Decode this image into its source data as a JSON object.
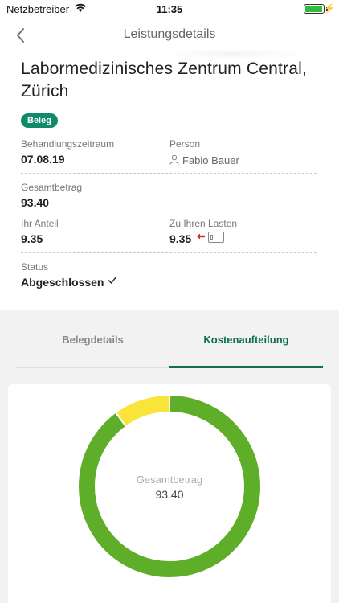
{
  "status_bar": {
    "carrier": "Netzbetreiber",
    "time": "11:35",
    "battery_level": 0.95
  },
  "nav": {
    "title": "Leistungsdetails"
  },
  "header": {
    "provider": "Labormedizinisches Zentrum Central, Zürich",
    "badge": "Beleg"
  },
  "details": {
    "period_label": "Behandlungszeitraum",
    "period_value": "07.08.19",
    "person_label": "Person",
    "person_value": "Fabio Bauer",
    "total_label": "Gesamtbetrag",
    "total_value": "93.40",
    "share_label": "Ihr Anteil",
    "share_value": "9.35",
    "charge_label": "Zu Ihren Lasten",
    "charge_value": "9.35",
    "status_label": "Status",
    "status_value": "Abgeschlossen"
  },
  "tabs": [
    {
      "label": "Belegdetails",
      "active": false
    },
    {
      "label": "Kostenaufteilung",
      "active": true
    }
  ],
  "donut": {
    "center_label": "Gesamtbetrag",
    "center_value": "93.40",
    "segments": [
      {
        "value": 84.05,
        "color": "#5fae2a"
      },
      {
        "value": 9.35,
        "color": "#fbe43a"
      }
    ]
  },
  "colors": {
    "brand": "#0f8a6a",
    "tab_active": "#0f6e55",
    "charge_arrow": "#d32f2f"
  }
}
